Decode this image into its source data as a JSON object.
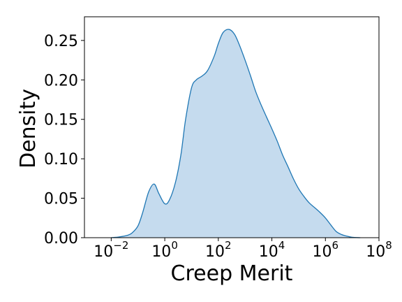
{
  "chart_data": {
    "type": "area",
    "title": "",
    "xlabel": "Creep Merit",
    "ylabel": "Density",
    "x_scale": "log",
    "xlim": [
      0.001,
      100000000
    ],
    "ylim": [
      0,
      0.28
    ],
    "grid": false,
    "legend": "none",
    "x_ticks": [
      {
        "base": "10",
        "exp": "−2",
        "value": 0.01
      },
      {
        "base": "10",
        "exp": "0",
        "value": 1
      },
      {
        "base": "10",
        "exp": "2",
        "value": 100
      },
      {
        "base": "10",
        "exp": "4",
        "value": 10000
      },
      {
        "base": "10",
        "exp": "6",
        "value": 1000000
      },
      {
        "base": "10",
        "exp": "8",
        "value": 100000000
      }
    ],
    "y_ticks": [
      {
        "label": "0.00",
        "value": 0
      },
      {
        "label": "0.05",
        "value": 0.05
      },
      {
        "label": "0.10",
        "value": 0.1
      },
      {
        "label": "0.15",
        "value": 0.15
      },
      {
        "label": "0.20",
        "value": 0.2
      },
      {
        "label": "0.25",
        "value": 0.25
      }
    ],
    "colors": {
      "line": "#1f77b4",
      "fill": "#c5dbee"
    },
    "series": [
      {
        "x": [
          0.01,
          0.02,
          0.04,
          0.06,
          0.1,
          0.15,
          0.25,
          0.4,
          0.6,
          1.0,
          1.5,
          2.5,
          4,
          6,
          10,
          15,
          25,
          40,
          70,
          100,
          150,
          250,
          400,
          600,
          1000,
          1600,
          2500,
          4000,
          6300,
          10000,
          16000,
          25000,
          40000,
          63000,
          100000,
          160000,
          250000,
          400000,
          630000,
          1000000,
          1600000,
          2500000,
          4000000,
          6300000,
          10000000,
          20000000
        ],
        "y": [
          0.0,
          0.001,
          0.003,
          0.006,
          0.015,
          0.032,
          0.058,
          0.068,
          0.056,
          0.043,
          0.048,
          0.07,
          0.105,
          0.15,
          0.19,
          0.2,
          0.205,
          0.212,
          0.23,
          0.246,
          0.26,
          0.264,
          0.258,
          0.245,
          0.225,
          0.205,
          0.185,
          0.168,
          0.153,
          0.138,
          0.122,
          0.105,
          0.09,
          0.075,
          0.062,
          0.052,
          0.044,
          0.038,
          0.032,
          0.025,
          0.016,
          0.008,
          0.004,
          0.002,
          0.0005,
          0.0
        ]
      }
    ]
  }
}
